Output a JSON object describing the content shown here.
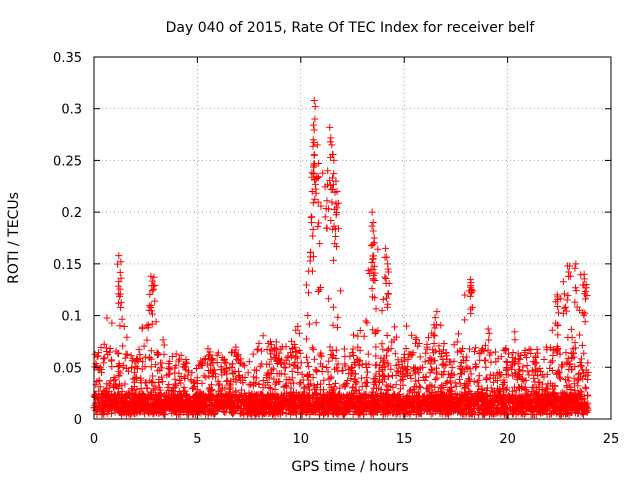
{
  "chart_data": {
    "type": "scatter",
    "title": "Day 040 of 2015, Rate Of TEC Index for receiver belf",
    "xlabel": "GPS time / hours",
    "ylabel": "ROTI / TECUs",
    "xlim": [
      0,
      25
    ],
    "ylim": [
      0,
      0.35
    ],
    "grid": true,
    "marker": "+",
    "series_color": "#ff0000",
    "x_ticks": [
      {
        "value": 0,
        "label": "0"
      },
      {
        "value": 5,
        "label": "5"
      },
      {
        "value": 10,
        "label": "10"
      },
      {
        "value": 15,
        "label": "15"
      },
      {
        "value": 20,
        "label": "20"
      },
      {
        "value": 25,
        "label": "25"
      }
    ],
    "y_ticks": [
      {
        "value": 0,
        "label": "0"
      },
      {
        "value": 0.05,
        "label": "0.05"
      },
      {
        "value": 0.1,
        "label": "0.1"
      },
      {
        "value": 0.15,
        "label": "0.15"
      },
      {
        "value": 0.2,
        "label": "0.2"
      },
      {
        "value": 0.25,
        "label": "0.25"
      },
      {
        "value": 0.3,
        "label": "0.3"
      },
      {
        "value": 0.35,
        "label": "0.35"
      }
    ],
    "envelope": [
      [
        0.0,
        0.05
      ],
      [
        0.3,
        0.08
      ],
      [
        0.7,
        0.095
      ],
      [
        1.0,
        0.12
      ],
      [
        1.2,
        0.158
      ],
      [
        1.4,
        0.12
      ],
      [
        1.7,
        0.05
      ],
      [
        2.2,
        0.06
      ],
      [
        2.6,
        0.12
      ],
      [
        2.8,
        0.138
      ],
      [
        3.1,
        0.09
      ],
      [
        3.6,
        0.06
      ],
      [
        4.0,
        0.055
      ],
      [
        5.0,
        0.04
      ],
      [
        5.5,
        0.06
      ],
      [
        6.0,
        0.058
      ],
      [
        6.5,
        0.045
      ],
      [
        6.9,
        0.075
      ],
      [
        7.5,
        0.045
      ],
      [
        8.2,
        0.08
      ],
      [
        9.0,
        0.06
      ],
      [
        9.5,
        0.07
      ],
      [
        10.0,
        0.085
      ],
      [
        10.4,
        0.19
      ],
      [
        10.7,
        0.308
      ],
      [
        11.0,
        0.22
      ],
      [
        11.3,
        0.265
      ],
      [
        11.6,
        0.25
      ],
      [
        11.9,
        0.17
      ],
      [
        12.3,
        0.07
      ],
      [
        13.0,
        0.08
      ],
      [
        13.5,
        0.2
      ],
      [
        13.9,
        0.13
      ],
      [
        14.2,
        0.165
      ],
      [
        14.6,
        0.08
      ],
      [
        15.0,
        0.09
      ],
      [
        15.5,
        0.07
      ],
      [
        16.0,
        0.06
      ],
      [
        16.6,
        0.098
      ],
      [
        17.0,
        0.06
      ],
      [
        17.5,
        0.07
      ],
      [
        18.2,
        0.135
      ],
      [
        18.6,
        0.07
      ],
      [
        19.0,
        0.085
      ],
      [
        19.5,
        0.055
      ],
      [
        20.0,
        0.06
      ],
      [
        20.4,
        0.085
      ],
      [
        20.8,
        0.06
      ],
      [
        21.5,
        0.07
      ],
      [
        22.0,
        0.1
      ],
      [
        22.5,
        0.12
      ],
      [
        22.9,
        0.148
      ],
      [
        23.3,
        0.15
      ],
      [
        23.8,
        0.14
      ]
    ],
    "peaks": [
      {
        "x": 1.2,
        "y": 0.158
      },
      {
        "x": 1.3,
        "y": 0.152
      },
      {
        "x": 2.75,
        "y": 0.138
      },
      {
        "x": 2.9,
        "y": 0.137
      },
      {
        "x": 10.65,
        "y": 0.308
      },
      {
        "x": 10.7,
        "y": 0.302
      },
      {
        "x": 10.68,
        "y": 0.29
      },
      {
        "x": 10.6,
        "y": 0.27
      },
      {
        "x": 10.8,
        "y": 0.265
      },
      {
        "x": 11.4,
        "y": 0.282
      },
      {
        "x": 11.5,
        "y": 0.265
      },
      {
        "x": 11.6,
        "y": 0.25
      },
      {
        "x": 11.3,
        "y": 0.24
      },
      {
        "x": 11.7,
        "y": 0.23
      },
      {
        "x": 11.75,
        "y": 0.22
      },
      {
        "x": 10.55,
        "y": 0.22
      },
      {
        "x": 10.5,
        "y": 0.195
      },
      {
        "x": 13.45,
        "y": 0.2
      },
      {
        "x": 13.5,
        "y": 0.19
      },
      {
        "x": 13.55,
        "y": 0.175
      },
      {
        "x": 13.5,
        "y": 0.155
      },
      {
        "x": 14.1,
        "y": 0.165
      },
      {
        "x": 14.2,
        "y": 0.15
      },
      {
        "x": 16.5,
        "y": 0.098
      },
      {
        "x": 18.2,
        "y": 0.135
      },
      {
        "x": 18.25,
        "y": 0.125
      },
      {
        "x": 22.9,
        "y": 0.148
      },
      {
        "x": 23.3,
        "y": 0.15
      },
      {
        "x": 23.7,
        "y": 0.14
      },
      {
        "x": 23.8,
        "y": 0.13
      },
      {
        "x": 22.4,
        "y": 0.12
      }
    ],
    "sample_count": 4200,
    "x_data_max": 23.9
  }
}
